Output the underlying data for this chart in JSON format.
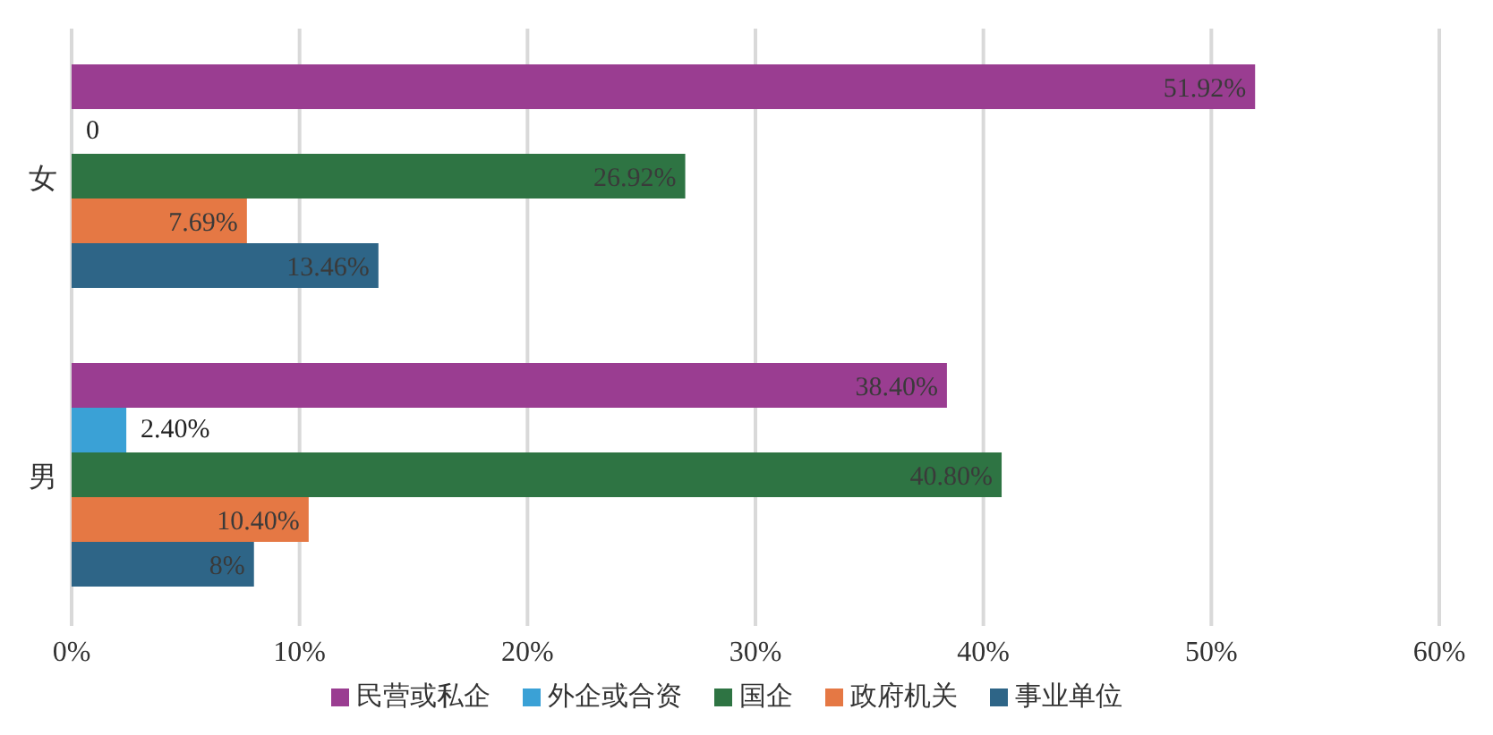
{
  "chart_data": {
    "type": "bar",
    "orientation": "horizontal",
    "categories": [
      "女",
      "男"
    ],
    "series": [
      {
        "name": "民营或私企",
        "color": "#9a3d91",
        "values": [
          51.92,
          38.4
        ],
        "value_labels": [
          "51.92%",
          "38.40%"
        ]
      },
      {
        "name": "外企或合资",
        "color": "#3aa1d6",
        "values": [
          0,
          2.4
        ],
        "value_labels": [
          "0",
          "2.40%"
        ]
      },
      {
        "name": "国企",
        "color": "#2e7443",
        "values": [
          26.92,
          40.8
        ],
        "value_labels": [
          "26.92%",
          "40.80%"
        ]
      },
      {
        "name": "政府机关",
        "color": "#e57844",
        "values": [
          7.69,
          10.4
        ],
        "value_labels": [
          "7.69%",
          "10.40%"
        ]
      },
      {
        "name": "事业单位",
        "color": "#2e6587",
        "values": [
          13.46,
          8
        ],
        "value_labels": [
          "13.46%",
          "8%"
        ]
      }
    ],
    "xlim": [
      0,
      60
    ],
    "xticks": [
      {
        "value": 0,
        "label": "0%"
      },
      {
        "value": 10,
        "label": "10%"
      },
      {
        "value": 20,
        "label": "20%"
      },
      {
        "value": 30,
        "label": "30%"
      },
      {
        "value": 40,
        "label": "40%"
      },
      {
        "value": 50,
        "label": "50%"
      },
      {
        "value": 60,
        "label": "60%"
      }
    ],
    "grid": "x",
    "legend": "bottom"
  }
}
